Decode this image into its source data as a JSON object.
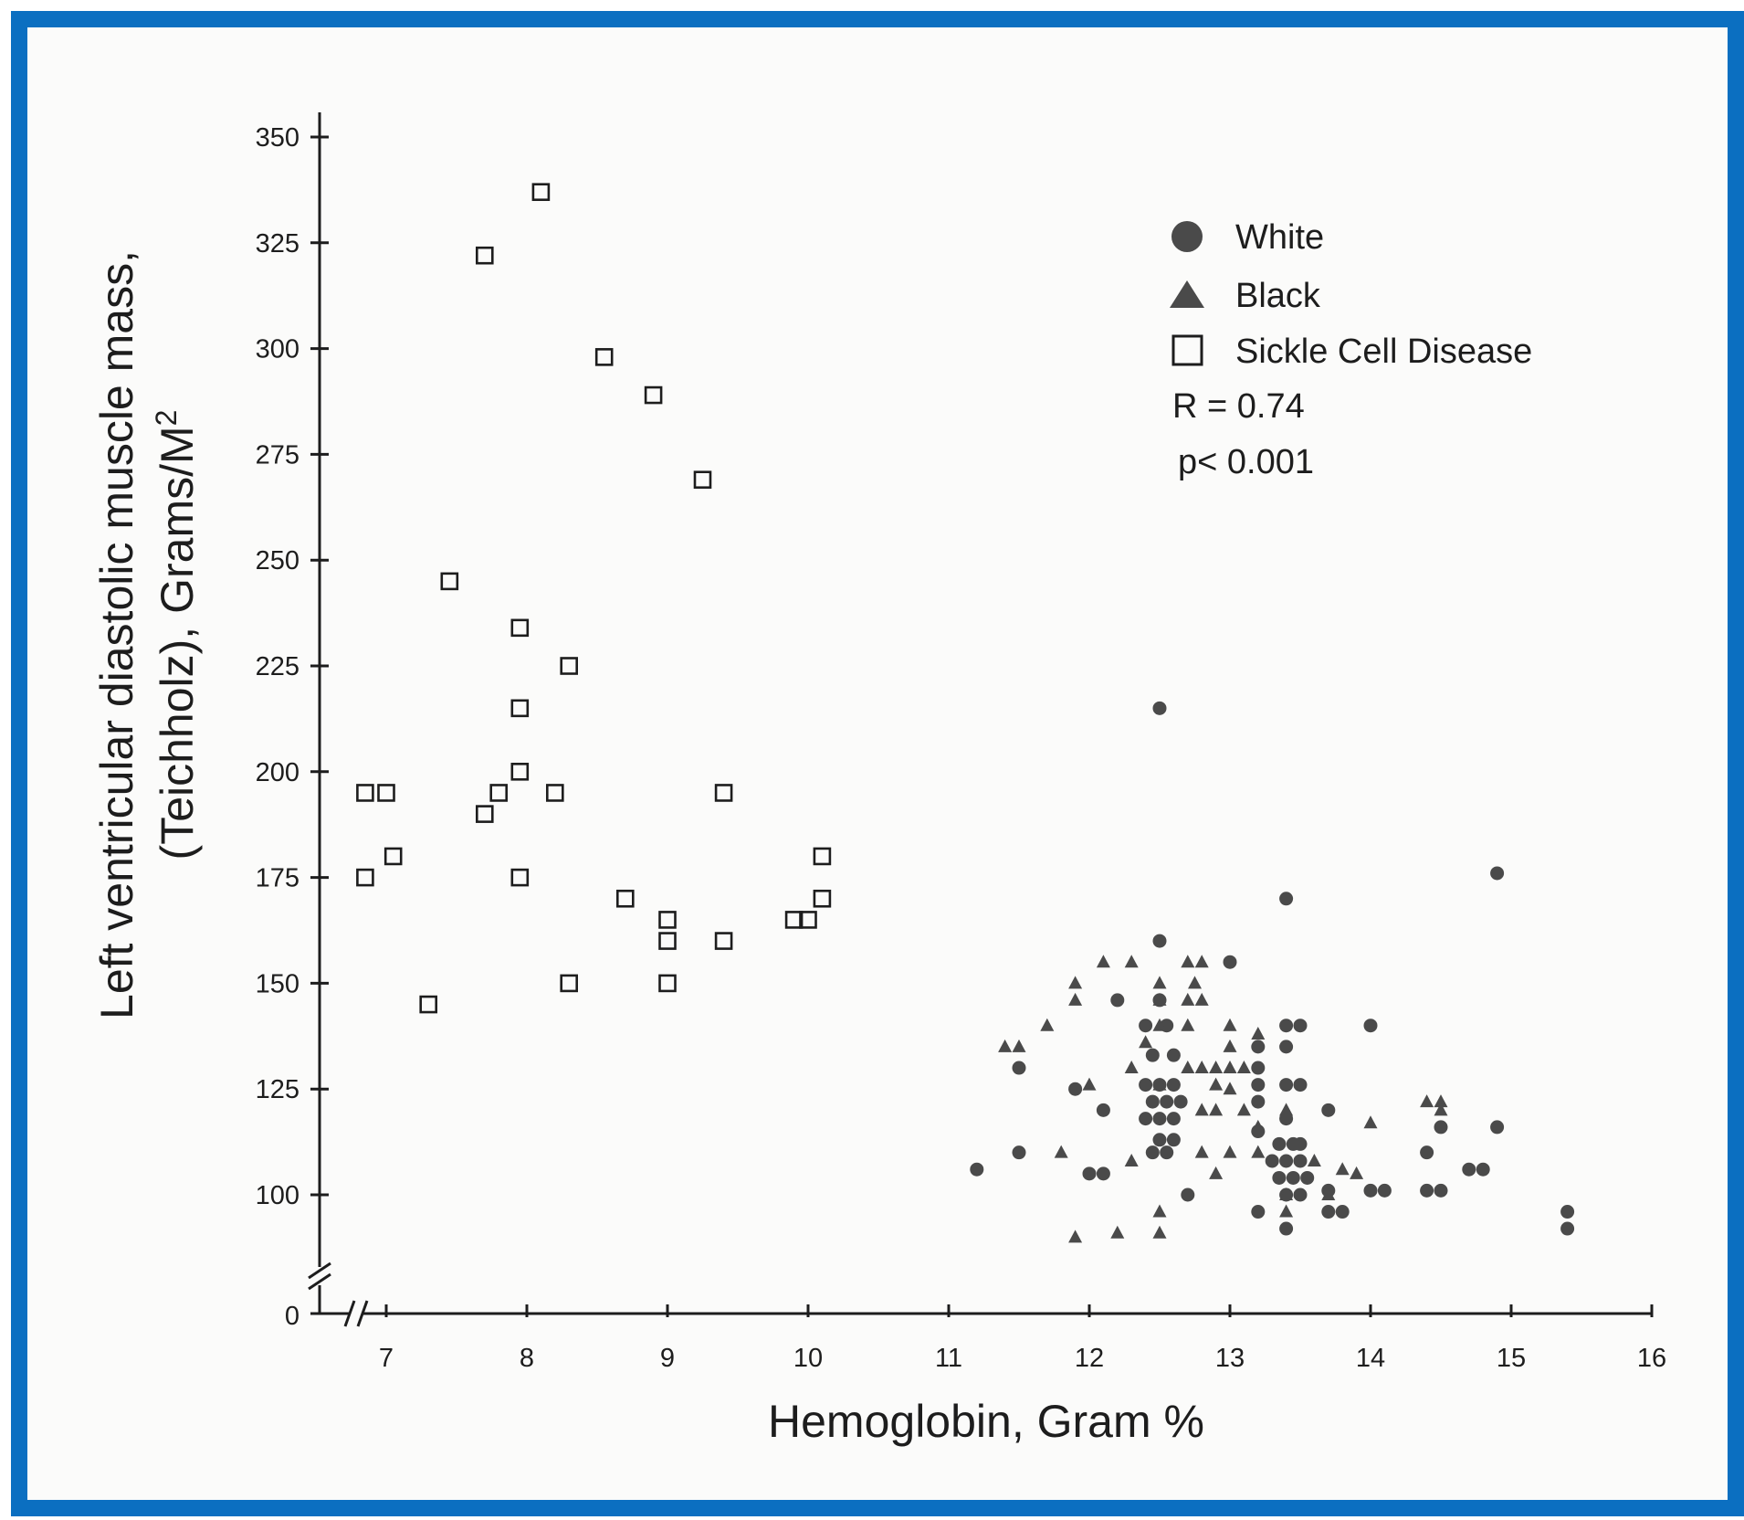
{
  "chart_data": {
    "type": "scatter",
    "title": "",
    "xlabel": "Hemoglobin, Gram %",
    "ylabel": {
      "line1": "Left ventricular diastolic muscle mass,",
      "line2_prefix": "(Teichholz), Grams/M",
      "line2_superscript": "2"
    },
    "xlim": [
      6.5,
      16
    ],
    "ylim": [
      75,
      355
    ],
    "x_ticks": [
      7,
      8,
      9,
      10,
      11,
      12,
      13,
      14,
      15,
      16
    ],
    "x_tick_labels": [
      "7",
      "8",
      "9",
      "10",
      "11",
      "12",
      "13",
      "14",
      "15",
      "16"
    ],
    "y_ticks": [
      100,
      125,
      150,
      175,
      200,
      225,
      250,
      275,
      300,
      325,
      350
    ],
    "y_tick_labels": [
      "100",
      "125",
      "150",
      "175",
      "200",
      "225",
      "250",
      "275",
      "300",
      "325",
      "350"
    ],
    "y_zero_label": "0",
    "axis_break": true,
    "grid": false,
    "legend_position": "top-right",
    "annotations": {
      "r": "R = 0.74",
      "p": "p< 0.001"
    },
    "colors": {
      "frame": "#0b6fc1",
      "marker": "#4a4a4a",
      "axis": "#1d1d1d"
    },
    "series": [
      {
        "name": "White",
        "marker": "circle",
        "points": [
          [
            12.5,
            215
          ],
          [
            14.9,
            176
          ],
          [
            13.4,
            170
          ],
          [
            12.5,
            160
          ],
          [
            13.0,
            155
          ],
          [
            12.2,
            146
          ],
          [
            12.5,
            146
          ],
          [
            12.4,
            140
          ],
          [
            12.55,
            140
          ],
          [
            14.0,
            140
          ],
          [
            13.4,
            140
          ],
          [
            13.5,
            140
          ],
          [
            12.45,
            133
          ],
          [
            12.6,
            133
          ],
          [
            13.2,
            135
          ],
          [
            13.4,
            135
          ],
          [
            11.5,
            130
          ],
          [
            13.2,
            130
          ],
          [
            12.4,
            126
          ],
          [
            12.5,
            126
          ],
          [
            12.6,
            126
          ],
          [
            13.2,
            126
          ],
          [
            13.4,
            126
          ],
          [
            13.5,
            126
          ],
          [
            11.9,
            125
          ],
          [
            12.45,
            122
          ],
          [
            12.55,
            122
          ],
          [
            12.65,
            122
          ],
          [
            13.2,
            122
          ],
          [
            12.4,
            118
          ],
          [
            12.5,
            118
          ],
          [
            12.6,
            118
          ],
          [
            13.4,
            118
          ],
          [
            13.7,
            120
          ],
          [
            12.1,
            120
          ],
          [
            13.2,
            115
          ],
          [
            14.5,
            116
          ],
          [
            14.9,
            116
          ],
          [
            12.5,
            113
          ],
          [
            12.6,
            113
          ],
          [
            13.35,
            112
          ],
          [
            13.45,
            112
          ],
          [
            13.5,
            112
          ],
          [
            11.5,
            110
          ],
          [
            12.45,
            110
          ],
          [
            12.55,
            110
          ],
          [
            13.3,
            108
          ],
          [
            13.4,
            108
          ],
          [
            13.5,
            108
          ],
          [
            14.4,
            110
          ],
          [
            13.35,
            104
          ],
          [
            13.45,
            104
          ],
          [
            13.55,
            104
          ],
          [
            11.2,
            106
          ],
          [
            12.0,
            105
          ],
          [
            12.1,
            105
          ],
          [
            14.7,
            106
          ],
          [
            14.8,
            106
          ],
          [
            13.4,
            100
          ],
          [
            13.5,
            100
          ],
          [
            13.7,
            101
          ],
          [
            14.0,
            101
          ],
          [
            14.1,
            101
          ],
          [
            14.4,
            101
          ],
          [
            14.5,
            101
          ],
          [
            12.7,
            100
          ],
          [
            13.2,
            96
          ],
          [
            13.7,
            96
          ],
          [
            13.8,
            96
          ],
          [
            15.4,
            96
          ],
          [
            13.4,
            92
          ],
          [
            15.4,
            92
          ]
        ]
      },
      {
        "name": "Black",
        "marker": "triangle",
        "points": [
          [
            12.1,
            155
          ],
          [
            12.3,
            155
          ],
          [
            12.7,
            155
          ],
          [
            12.8,
            155
          ],
          [
            11.9,
            150
          ],
          [
            12.5,
            150
          ],
          [
            12.75,
            150
          ],
          [
            11.9,
            146
          ],
          [
            12.5,
            146
          ],
          [
            12.7,
            146
          ],
          [
            12.8,
            146
          ],
          [
            11.7,
            140
          ],
          [
            12.5,
            140
          ],
          [
            12.7,
            140
          ],
          [
            13.0,
            140
          ],
          [
            12.4,
            136
          ],
          [
            13.2,
            138
          ],
          [
            11.4,
            135
          ],
          [
            11.5,
            135
          ],
          [
            13.0,
            135
          ],
          [
            12.3,
            130
          ],
          [
            12.7,
            130
          ],
          [
            12.8,
            130
          ],
          [
            12.9,
            130
          ],
          [
            13.0,
            130
          ],
          [
            13.1,
            130
          ],
          [
            12.0,
            126
          ],
          [
            12.5,
            126
          ],
          [
            12.9,
            126
          ],
          [
            13.0,
            125
          ],
          [
            14.4,
            122
          ],
          [
            14.5,
            122
          ],
          [
            12.8,
            120
          ],
          [
            12.9,
            120
          ],
          [
            13.1,
            120
          ],
          [
            13.4,
            120
          ],
          [
            14.5,
            120
          ],
          [
            14.0,
            117
          ],
          [
            13.2,
            116
          ],
          [
            11.8,
            110
          ],
          [
            12.8,
            110
          ],
          [
            13.0,
            110
          ],
          [
            13.2,
            110
          ],
          [
            12.3,
            108
          ],
          [
            13.6,
            108
          ],
          [
            13.8,
            106
          ],
          [
            12.9,
            105
          ],
          [
            13.9,
            105
          ],
          [
            13.4,
            100
          ],
          [
            13.7,
            100
          ],
          [
            12.5,
            96
          ],
          [
            13.4,
            96
          ],
          [
            11.9,
            90
          ],
          [
            12.2,
            91
          ],
          [
            12.5,
            91
          ]
        ]
      },
      {
        "name": "Sickle Cell Disease",
        "marker": "square",
        "points": [
          [
            8.1,
            337
          ],
          [
            7.7,
            322
          ],
          [
            8.55,
            298
          ],
          [
            8.9,
            289
          ],
          [
            9.25,
            269
          ],
          [
            7.45,
            245
          ],
          [
            7.95,
            234
          ],
          [
            8.3,
            225
          ],
          [
            7.95,
            215
          ],
          [
            7.95,
            200
          ],
          [
            6.85,
            195
          ],
          [
            7.0,
            195
          ],
          [
            7.8,
            195
          ],
          [
            8.2,
            195
          ],
          [
            9.4,
            195
          ],
          [
            7.7,
            190
          ],
          [
            7.05,
            180
          ],
          [
            10.1,
            180
          ],
          [
            6.85,
            175
          ],
          [
            7.95,
            175
          ],
          [
            8.7,
            170
          ],
          [
            10.1,
            170
          ],
          [
            9.0,
            165
          ],
          [
            9.9,
            165
          ],
          [
            10.0,
            165
          ],
          [
            9.0,
            160
          ],
          [
            9.4,
            160
          ],
          [
            8.3,
            150
          ],
          [
            9.0,
            150
          ],
          [
            7.3,
            145
          ]
        ]
      }
    ]
  }
}
